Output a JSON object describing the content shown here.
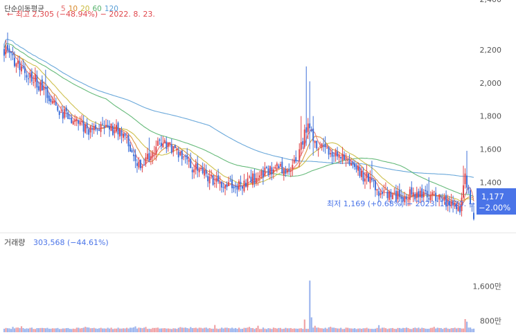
{
  "chart_data": [
    {
      "type": "candlestick",
      "title": "",
      "legend": {
        "label": "단순이동평균",
        "periods": [
          {
            "label": "5",
            "color": "#e46a6a"
          },
          {
            "label": "10",
            "color": "#d88a2a"
          },
          {
            "label": "20",
            "color": "#c9b93a"
          },
          {
            "label": "60",
            "color": "#55b26b"
          },
          {
            "label": "120",
            "color": "#5a9fd6"
          }
        ]
      },
      "high_annotation": "최고 2,305 (−48.94%) − 2022. 8. 23.",
      "low_annotation": "최저 1,169 (+0.68%) − 2023. 10. 20.",
      "current_price": {
        "value": "1,177",
        "change": "−2.00%",
        "price": 1177
      },
      "ylim": [
        1100,
        2400
      ],
      "yticks": [
        {
          "label": "2,200",
          "value": 2200
        },
        {
          "label": "2,000",
          "value": 2000
        },
        {
          "label": "1,800",
          "value": 1800
        },
        {
          "label": "1,600",
          "value": 1600
        },
        {
          "label": "1,400",
          "value": 1400
        }
      ],
      "colors": {
        "up": "#e0474c",
        "down": "#3d6fd9",
        "accent": "#4a74e8"
      },
      "close_trend": [
        [
          0,
          2200
        ],
        [
          6,
          2130
        ],
        [
          12,
          2060
        ],
        [
          18,
          2020
        ],
        [
          24,
          1930
        ],
        [
          30,
          1850
        ],
        [
          36,
          1800
        ],
        [
          42,
          1760
        ],
        [
          48,
          1720
        ],
        [
          54,
          1730
        ],
        [
          60,
          1720
        ],
        [
          66,
          1720
        ],
        [
          72,
          1640
        ],
        [
          78,
          1500
        ],
        [
          84,
          1560
        ],
        [
          90,
          1630
        ],
        [
          96,
          1620
        ],
        [
          102,
          1560
        ],
        [
          108,
          1500
        ],
        [
          114,
          1460
        ],
        [
          120,
          1420
        ],
        [
          126,
          1400
        ],
        [
          132,
          1380
        ],
        [
          138,
          1390
        ],
        [
          144,
          1420
        ],
        [
          150,
          1450
        ],
        [
          156,
          1480
        ],
        [
          162,
          1480
        ],
        [
          168,
          1510
        ],
        [
          172,
          1620
        ],
        [
          176,
          1760
        ],
        [
          180,
          1620
        ],
        [
          186,
          1600
        ],
        [
          190,
          1580
        ],
        [
          196,
          1540
        ],
        [
          202,
          1500
        ],
        [
          208,
          1440
        ],
        [
          212,
          1420
        ],
        [
          216,
          1330
        ],
        [
          220,
          1330
        ],
        [
          226,
          1310
        ],
        [
          232,
          1320
        ],
        [
          238,
          1330
        ],
        [
          244,
          1320
        ],
        [
          250,
          1310
        ],
        [
          256,
          1280
        ],
        [
          262,
          1260
        ],
        [
          264,
          1240
        ],
        [
          267,
          1450
        ],
        [
          270,
          1300
        ],
        [
          272,
          1177
        ]
      ],
      "spikes": [
        {
          "i": 2,
          "high": 2305,
          "low": 2180
        },
        {
          "i": 24,
          "high": 2080,
          "low": 1880
        },
        {
          "i": 84,
          "high": 1670,
          "low": 1520
        },
        {
          "i": 172,
          "high": 1800,
          "low": 1560
        },
        {
          "i": 175,
          "high": 2100,
          "low": 1620
        },
        {
          "i": 177,
          "high": 2010,
          "low": 1600
        },
        {
          "i": 179,
          "high": 1800,
          "low": 1560
        },
        {
          "i": 213,
          "high": 1530,
          "low": 1400
        },
        {
          "i": 246,
          "high": 1430,
          "low": 1280
        },
        {
          "i": 266,
          "high": 1500,
          "low": 1300
        },
        {
          "i": 268,
          "high": 1590,
          "low": 1330
        },
        {
          "i": 272,
          "high": 1260,
          "low": 1169
        }
      ]
    },
    {
      "type": "bar",
      "label": "거래량",
      "value": "303,568 (−44.61%)",
      "ylim": [
        650,
        1760
      ],
      "yticks": [
        {
          "label": "1,600만",
          "value": 1600
        },
        {
          "label": "800만",
          "value": 800
        }
      ],
      "unit": "만",
      "spikes": [
        {
          "i": 174,
          "value": 830
        },
        {
          "i": 177,
          "value": 1730
        },
        {
          "i": 178,
          "value": 880
        },
        {
          "i": 267,
          "value": 840
        },
        {
          "i": 268,
          "value": 780
        }
      ]
    }
  ]
}
